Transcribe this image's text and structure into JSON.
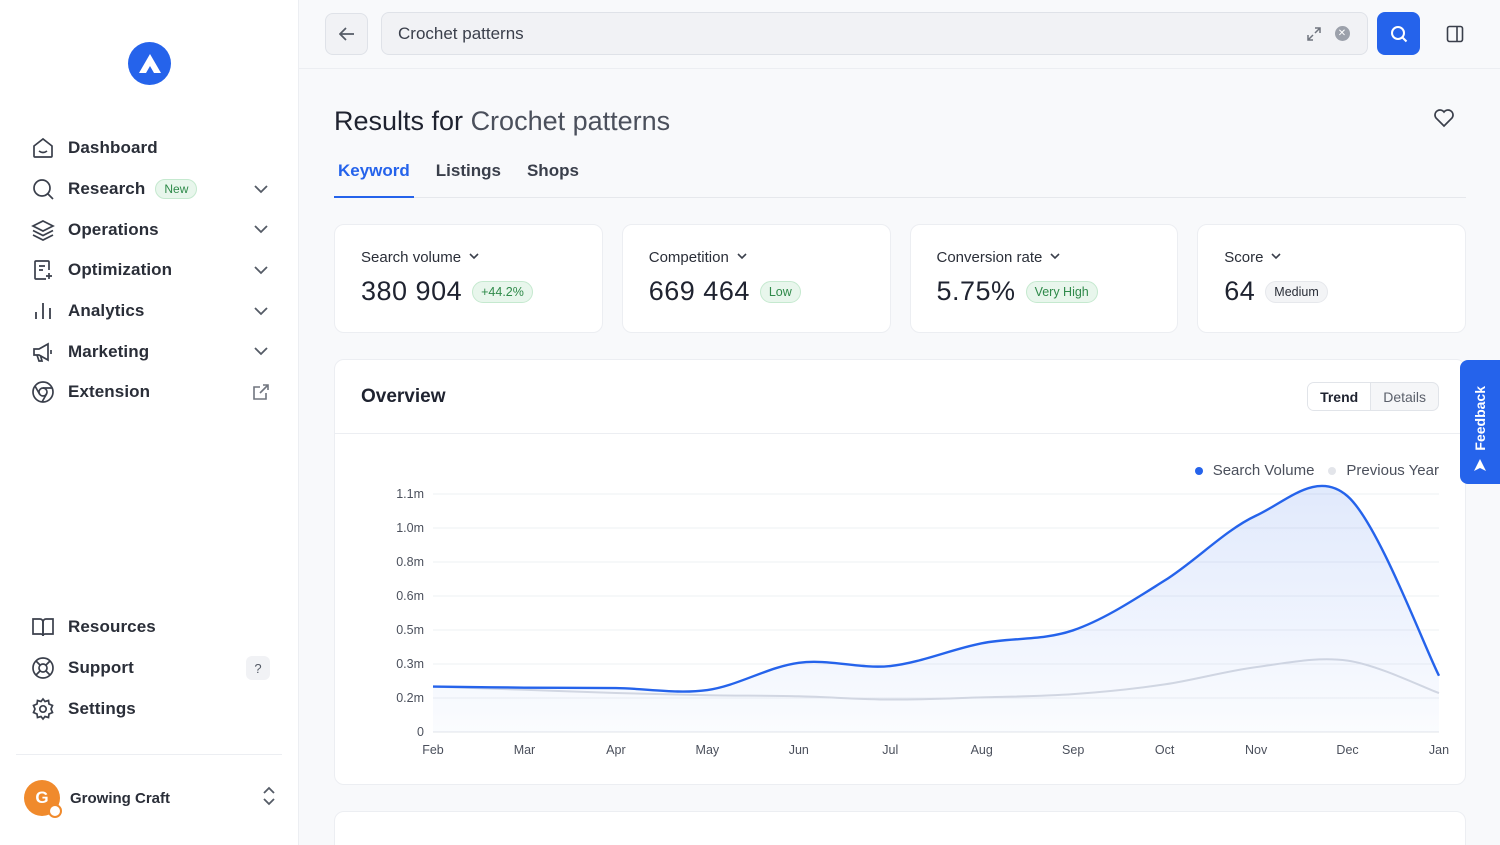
{
  "sidebar": {
    "items": [
      {
        "label": "Dashboard",
        "icon": "home-icon"
      },
      {
        "label": "Research",
        "icon": "search-icon",
        "badge": "New"
      },
      {
        "label": "Operations",
        "icon": "layers-icon"
      },
      {
        "label": "Optimization",
        "icon": "document-edit-icon"
      },
      {
        "label": "Analytics",
        "icon": "bar-chart-icon"
      },
      {
        "label": "Marketing",
        "icon": "megaphone-icon"
      },
      {
        "label": "Extension",
        "icon": "chrome-icon"
      }
    ],
    "bottom_items": [
      {
        "label": "Resources",
        "icon": "book-icon"
      },
      {
        "label": "Support",
        "icon": "lifebuoy-icon",
        "hint": "?"
      },
      {
        "label": "Settings",
        "icon": "gear-icon"
      }
    ],
    "shop": {
      "name": "Growing Craft",
      "avatar_letter": "G"
    }
  },
  "search": {
    "value": "Crochet patterns"
  },
  "page": {
    "title_prefix": "Results for",
    "title_keyword": "Crochet patterns",
    "tabs": [
      "Keyword",
      "Listings",
      "Shops"
    ],
    "active_tab": "Keyword"
  },
  "metrics": [
    {
      "label": "Search volume",
      "value": "380 904",
      "badge": "+44.2%"
    },
    {
      "label": "Competition",
      "value": "669 464",
      "badge": "Low"
    },
    {
      "label": "Conversion rate",
      "value": "5.75%",
      "badge": "Very High"
    },
    {
      "label": "Score",
      "value": "64",
      "badge": "Medium"
    }
  ],
  "overview": {
    "title": "Overview",
    "segments": [
      "Trend",
      "Details"
    ],
    "active_segment": "Trend"
  },
  "feedback": {
    "label": "Feedback"
  },
  "colors": {
    "accent": "#2563eb",
    "prev_year": "#d8dbe2"
  },
  "chart_data": {
    "type": "area",
    "categories": [
      "Feb",
      "Mar",
      "Apr",
      "May",
      "Jun",
      "Jul",
      "Aug",
      "Sep",
      "Oct",
      "Nov",
      "Dec",
      "Jan"
    ],
    "y_ticks": [
      "0",
      "0.2m",
      "0.3m",
      "0.5m",
      "0.6m",
      "0.8m",
      "1.0m",
      "1.1m"
    ],
    "ylim": [
      0,
      1100000
    ],
    "grid": true,
    "legend_position": "top-right",
    "series": [
      {
        "name": "Search Volume",
        "color": "#2563eb",
        "values": [
          210000,
          205000,
          203000,
          194000,
          320000,
          305000,
          410000,
          470000,
          700000,
          1000000,
          1090000,
          260000
        ]
      },
      {
        "name": "Previous Year",
        "color": "#d8dbe2",
        "values": [
          210000,
          195000,
          180000,
          170000,
          165000,
          150000,
          160000,
          175000,
          220000,
          300000,
          330000,
          180000
        ]
      }
    ]
  }
}
